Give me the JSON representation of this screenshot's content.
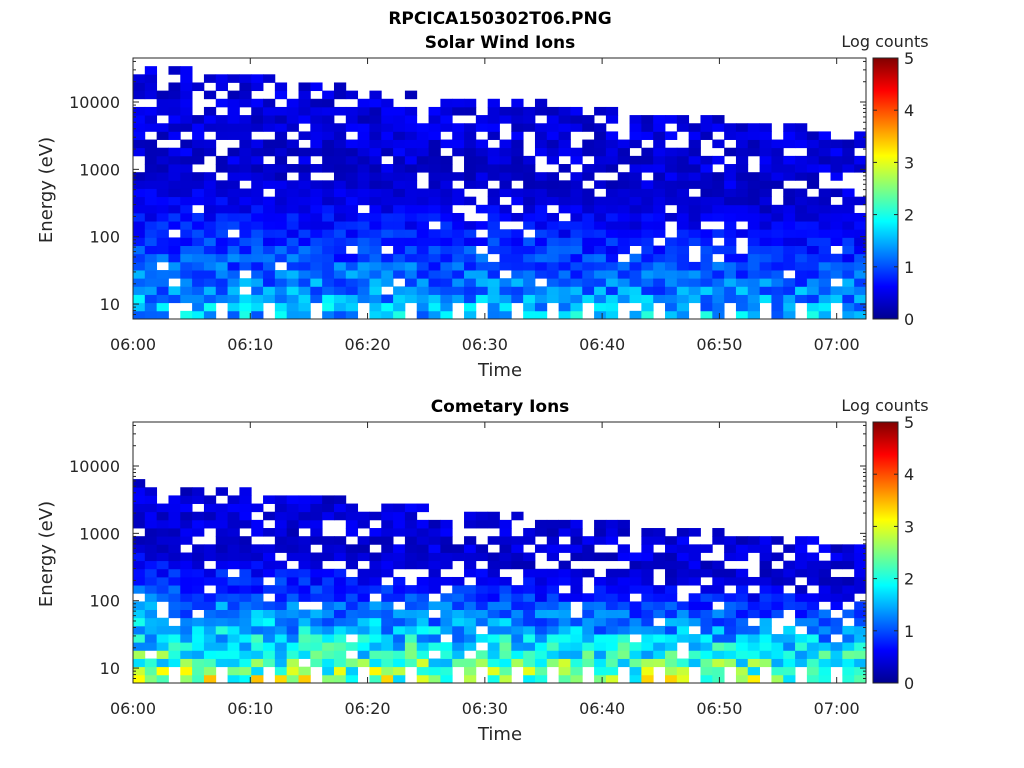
{
  "figure": {
    "title": "RPCICA150302T06.PNG"
  },
  "chart_data": [
    {
      "type": "heatmap",
      "title": "Solar Wind Ions",
      "xlabel": "Time",
      "ylabel": "Energy (eV)",
      "xticks": [
        "06:00",
        "06:10",
        "06:20",
        "06:30",
        "06:40",
        "06:50",
        "07:00"
      ],
      "xlim": [
        "06:00",
        "07:02.5"
      ],
      "yscale": "log",
      "yticks": [
        10,
        100,
        1000,
        10000
      ],
      "ytick_labels": [
        "10",
        "100",
        "1000",
        "10000"
      ],
      "ylim": [
        6,
        45000
      ],
      "colorbar": {
        "label": "Log counts",
        "ticks": [
          "0",
          "1",
          "2",
          "3",
          "4",
          "5"
        ],
        "range": [
          0,
          5
        ],
        "colormap": "jet"
      },
      "profile": {
        "low_energy_peak_log_counts": 1.8,
        "high_energy_extent_eV": 30000,
        "late_max_energy_eV": 3000
      }
    },
    {
      "type": "heatmap",
      "title": "Cometary Ions",
      "xlabel": "Time",
      "ylabel": "Energy (eV)",
      "xticks": [
        "06:00",
        "06:10",
        "06:20",
        "06:30",
        "06:40",
        "06:50",
        "07:00"
      ],
      "xlim": [
        "06:00",
        "07:02.5"
      ],
      "yscale": "log",
      "yticks": [
        10,
        100,
        1000,
        10000
      ],
      "ytick_labels": [
        "10",
        "100",
        "1000",
        "10000"
      ],
      "ylim": [
        6,
        45000
      ],
      "colorbar": {
        "label": "Log counts",
        "ticks": [
          "0",
          "1",
          "2",
          "3",
          "4",
          "5"
        ],
        "range": [
          0,
          5
        ],
        "colormap": "jet"
      },
      "profile": {
        "low_energy_peak_log_counts": 3.0,
        "high_energy_extent_eV": 5000,
        "late_max_energy_eV": 600
      }
    }
  ]
}
